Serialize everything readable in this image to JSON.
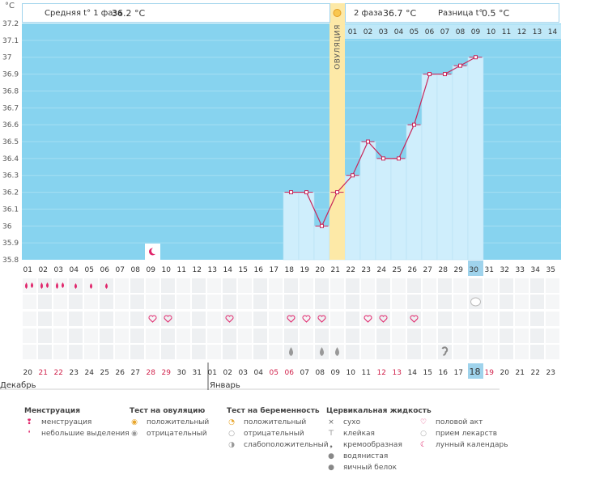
{
  "header": {
    "phase1_label": "Средняя t° 1 фаза",
    "phase1_value": "36.2 °C",
    "phase2_label": "2 фаза",
    "phase2_value": "36.7 °C",
    "diff_label": "Разница t°",
    "diff_value": "0.5 °C"
  },
  "colors": {
    "bg_sky": "#87d3ef",
    "column": "#cfeefc",
    "ovulation": "#fde9a7",
    "line": "#c8265a",
    "red_text": "#d1234c",
    "today": "#9fd3ec"
  },
  "chart_data": {
    "type": "line",
    "title": "",
    "ylabel": "°C",
    "ylim": [
      35.8,
      37.2
    ],
    "y_ticks": [
      "37.2",
      "37.1",
      "37",
      "36.9",
      "36.8",
      "36.7",
      "36.6",
      "36.5",
      "36.4",
      "36.3",
      "36.2",
      "36.1",
      "36",
      "35.9",
      "35.8"
    ],
    "cycle_days": [
      "01",
      "02",
      "03",
      "04",
      "05",
      "06",
      "07",
      "08",
      "09",
      "10",
      "11",
      "12",
      "13",
      "14",
      "15",
      "16",
      "17",
      "18",
      "19",
      "20",
      "21",
      "22",
      "23",
      "24",
      "25",
      "26",
      "27",
      "28",
      "29",
      "30",
      "31",
      "32",
      "33",
      "34",
      "35"
    ],
    "current_day": "30",
    "ovulation_day_index": 20,
    "ovulation_label": "ОВУЛЯЦИЯ",
    "dpo_labels": [
      "01",
      "02",
      "03",
      "04",
      "05",
      "06",
      "07",
      "08",
      "09",
      "10",
      "11",
      "12",
      "13",
      "14"
    ],
    "temperatures": [
      {
        "day": 18,
        "t": 36.2
      },
      {
        "day": 19,
        "t": 36.2
      },
      {
        "day": 20,
        "t": 36.0
      },
      {
        "day": 21,
        "t": 36.2
      },
      {
        "day": 22,
        "t": 36.3
      },
      {
        "day": 23,
        "t": 36.5
      },
      {
        "day": 24,
        "t": 36.4
      },
      {
        "day": 25,
        "t": 36.4
      },
      {
        "day": 26,
        "t": 36.6
      },
      {
        "day": 27,
        "t": 36.9
      },
      {
        "day": 28,
        "t": 36.9
      },
      {
        "day": 29,
        "t": 36.95
      },
      {
        "day": 30,
        "t": 37.0
      }
    ],
    "dates": [
      "20",
      "21",
      "22",
      "23",
      "24",
      "25",
      "26",
      "27",
      "28",
      "29",
      "30",
      "31",
      "01",
      "02",
      "03",
      "04",
      "05",
      "06",
      "07",
      "08",
      "09",
      "10",
      "11",
      "12",
      "13",
      "14",
      "15",
      "16",
      "17",
      "18",
      "19",
      "20",
      "21",
      "22",
      "23"
    ],
    "date_highlight": [
      1,
      2,
      8,
      9,
      16,
      17,
      23,
      24,
      30
    ],
    "current_date_index": 29,
    "month_labels": [
      {
        "label": "Декабрь",
        "start_index": 0
      },
      {
        "label": "Январь",
        "start_index": 12
      }
    ],
    "moon_day": 9,
    "marks": {
      "menstruation_heavy": [
        1,
        2,
        3
      ],
      "menstruation_light": [
        4,
        5,
        6
      ],
      "pregnancy_test_negative": [
        30
      ],
      "intercourse": [
        9,
        10,
        14,
        18,
        19,
        20,
        23,
        24,
        26
      ],
      "cervical_watery": [
        18,
        20,
        21
      ],
      "cervical_creamy": [
        28
      ]
    }
  },
  "legend": {
    "groups": [
      {
        "title": "Менструация",
        "items": [
          {
            "icon": "drop-heavy",
            "label": "менструация"
          },
          {
            "icon": "drop-light",
            "label": "небольшие выделения"
          }
        ]
      },
      {
        "title": "Тест на овуляцию",
        "items": [
          {
            "icon": "ovulation-positive",
            "label": "положительный"
          },
          {
            "icon": "ovulation-negative",
            "label": "отрицательный"
          }
        ]
      },
      {
        "title": "Тест на беременность",
        "items": [
          {
            "icon": "pregnancy-positive",
            "label": "положительный"
          },
          {
            "icon": "pregnancy-negative",
            "label": "отрицательный"
          },
          {
            "icon": "pregnancy-weak",
            "label": "слабоположительный"
          }
        ]
      },
      {
        "title": "Цервикальная жидкость",
        "items": [
          {
            "icon": "dry",
            "label": "сухо"
          },
          {
            "icon": "sticky",
            "label": "клейкая"
          },
          {
            "icon": "creamy",
            "label": "кремообразная"
          },
          {
            "icon": "watery",
            "label": "водянистая"
          },
          {
            "icon": "egg-white",
            "label": "яичный белок"
          }
        ]
      },
      {
        "title": "",
        "items": [
          {
            "icon": "intercourse",
            "label": "половой акт"
          },
          {
            "icon": "medication",
            "label": "прием лекарств"
          },
          {
            "icon": "lunar",
            "label": "лунный календарь"
          }
        ]
      }
    ]
  }
}
